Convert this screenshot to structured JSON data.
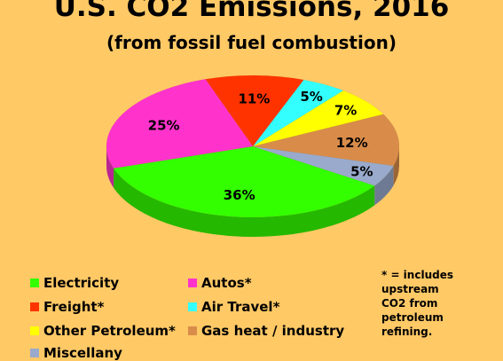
{
  "chart_data": {
    "type": "pie",
    "title": "U.S. CO2 Emissions, 2016",
    "subtitle": "(from fossil fuel combustion)",
    "slices": [
      {
        "name": "Electricity",
        "value": 36,
        "label": "36%",
        "color": "#33FF00"
      },
      {
        "name": "Autos*",
        "value": 25,
        "label": "25%",
        "color": "#FF33CC"
      },
      {
        "name": "Freight*",
        "value": 11,
        "label": "11%",
        "color": "#FF3300"
      },
      {
        "name": "Air Travel*",
        "value": 5,
        "label": "5%",
        "color": "#33FFFF"
      },
      {
        "name": "Other Petroleum*",
        "value": 7,
        "label": "7%",
        "color": "#FFFF00"
      },
      {
        "name": "Gas heat / industry",
        "value": 12,
        "label": "12%",
        "color": "#D98C4A"
      },
      {
        "name": "Miscellany",
        "value": 5,
        "label": "5%",
        "color": "#99AACC"
      }
    ],
    "legend_position": "bottom"
  },
  "footnote": [
    "* = includes",
    "upstream",
    "CO2 from",
    "petroleum",
    "refining."
  ]
}
